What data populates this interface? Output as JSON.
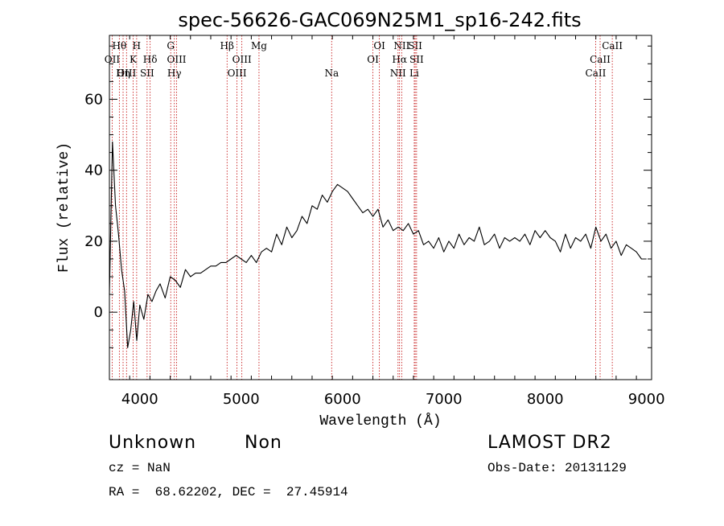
{
  "chart_data": {
    "type": "line",
    "title": "spec-56626-GAC069N25M1_sp16-242.fits",
    "xlabel": "Wavelength (Å)",
    "ylabel": "Flux (relative)",
    "xlim": [
      3700,
      9050
    ],
    "ylim": [
      -19,
      78
    ],
    "xticks": [
      4000,
      5000,
      6000,
      7000,
      8000,
      9000
    ],
    "yticks": [
      0,
      20,
      40,
      60
    ],
    "grid": false,
    "series": [
      {
        "color": "#000000",
        "x": [
          3700,
          3730,
          3760,
          3790,
          3820,
          3850,
          3880,
          3910,
          3940,
          3970,
          4000,
          4040,
          4080,
          4120,
          4160,
          4200,
          4250,
          4300,
          4350,
          4400,
          4450,
          4500,
          4550,
          4600,
          4650,
          4700,
          4750,
          4800,
          4850,
          4900,
          4950,
          5000,
          5050,
          5100,
          5150,
          5200,
          5250,
          5300,
          5350,
          5400,
          5450,
          5500,
          5550,
          5600,
          5650,
          5700,
          5750,
          5800,
          5850,
          5900,
          5950,
          6000,
          6050,
          6100,
          6150,
          6200,
          6250,
          6300,
          6350,
          6400,
          6450,
          6500,
          6550,
          6600,
          6650,
          6700,
          6750,
          6800,
          6850,
          6900,
          6950,
          7000,
          7050,
          7100,
          7150,
          7200,
          7250,
          7300,
          7350,
          7400,
          7450,
          7500,
          7550,
          7600,
          7650,
          7700,
          7750,
          7800,
          7850,
          7900,
          7950,
          8000,
          8050,
          8100,
          8150,
          8200,
          8250,
          8300,
          8350,
          8400,
          8450,
          8500,
          8550,
          8600,
          8650,
          8700,
          8750,
          8800,
          8850,
          8900,
          8950,
          9000
        ],
        "y": [
          5,
          48,
          30,
          22,
          12,
          6,
          -10,
          -5,
          3,
          -8,
          2,
          -2,
          5,
          3,
          6,
          8,
          4,
          10,
          9,
          7,
          12,
          10,
          11,
          11,
          12,
          13,
          13,
          14,
          14,
          15,
          16,
          15,
          14,
          16,
          14,
          17,
          18,
          17,
          22,
          19,
          24,
          21,
          23,
          27,
          25,
          30,
          29,
          33,
          31,
          34,
          36,
          35,
          34,
          32,
          30,
          28,
          29,
          27,
          29,
          24,
          26,
          23,
          24,
          23,
          25,
          22,
          23,
          19,
          20,
          18,
          21,
          17,
          20,
          18,
          22,
          19,
          21,
          20,
          24,
          19,
          20,
          22,
          18,
          21,
          20,
          21,
          20,
          22,
          19,
          23,
          21,
          23,
          21,
          20,
          17,
          22,
          18,
          21,
          20,
          22,
          18,
          24,
          20,
          22,
          18,
          20,
          16,
          19,
          18,
          17,
          15,
          15
        ]
      }
    ],
    "lines": [
      {
        "label": "Hθ",
        "x": 3798,
        "row": 0
      },
      {
        "label": "OII",
        "x": 3727,
        "row": 1
      },
      {
        "label": "OIII",
        "x": 3869,
        "row": 2
      },
      {
        "label": "Hη",
        "x": 3835,
        "row": 2
      },
      {
        "label": "H",
        "x": 3969,
        "row": 0
      },
      {
        "label": "K",
        "x": 3934,
        "row": 1
      },
      {
        "label": "Hδ",
        "x": 4102,
        "row": 1
      },
      {
        "label": "SII",
        "x": 4072,
        "row": 2
      },
      {
        "label": "G",
        "x": 4305,
        "row": 0
      },
      {
        "label": "OIII",
        "x": 4363,
        "row": 1
      },
      {
        "label": "Hγ",
        "x": 4341,
        "row": 2
      },
      {
        "label": "Hβ",
        "x": 4861,
        "row": 0
      },
      {
        "label": "OIII",
        "x": 5007,
        "row": 1
      },
      {
        "label": "OIII",
        "x": 4959,
        "row": 2
      },
      {
        "label": "Mg",
        "x": 5176,
        "row": 0
      },
      {
        "label": "Na",
        "x": 5893,
        "row": 2
      },
      {
        "label": "OI",
        "x": 6364,
        "row": 0
      },
      {
        "label": "OI",
        "x": 6300,
        "row": 1
      },
      {
        "label": "NII",
        "x": 6584,
        "row": 0
      },
      {
        "label": "Hα",
        "x": 6563,
        "row": 1
      },
      {
        "label": "NII",
        "x": 6548,
        "row": 2
      },
      {
        "label": "SII",
        "x": 6717,
        "row": 0
      },
      {
        "label": "SII",
        "x": 6731,
        "row": 1
      },
      {
        "label": "Li",
        "x": 6708,
        "row": 2
      },
      {
        "label": "CaII",
        "x": 8662,
        "row": 0
      },
      {
        "label": "CaII",
        "x": 8542,
        "row": 1
      },
      {
        "label": "CaII",
        "x": 8498,
        "row": 2
      }
    ]
  },
  "footer": {
    "class_label": "Unknown",
    "subclass_label": "Non",
    "survey_label": "LAMOST DR2",
    "cz_text": "cz = NaN",
    "obs_date_text": "Obs-Date: 20131129",
    "coords_text": "RA =  68.62202, DEC =  27.45914"
  }
}
